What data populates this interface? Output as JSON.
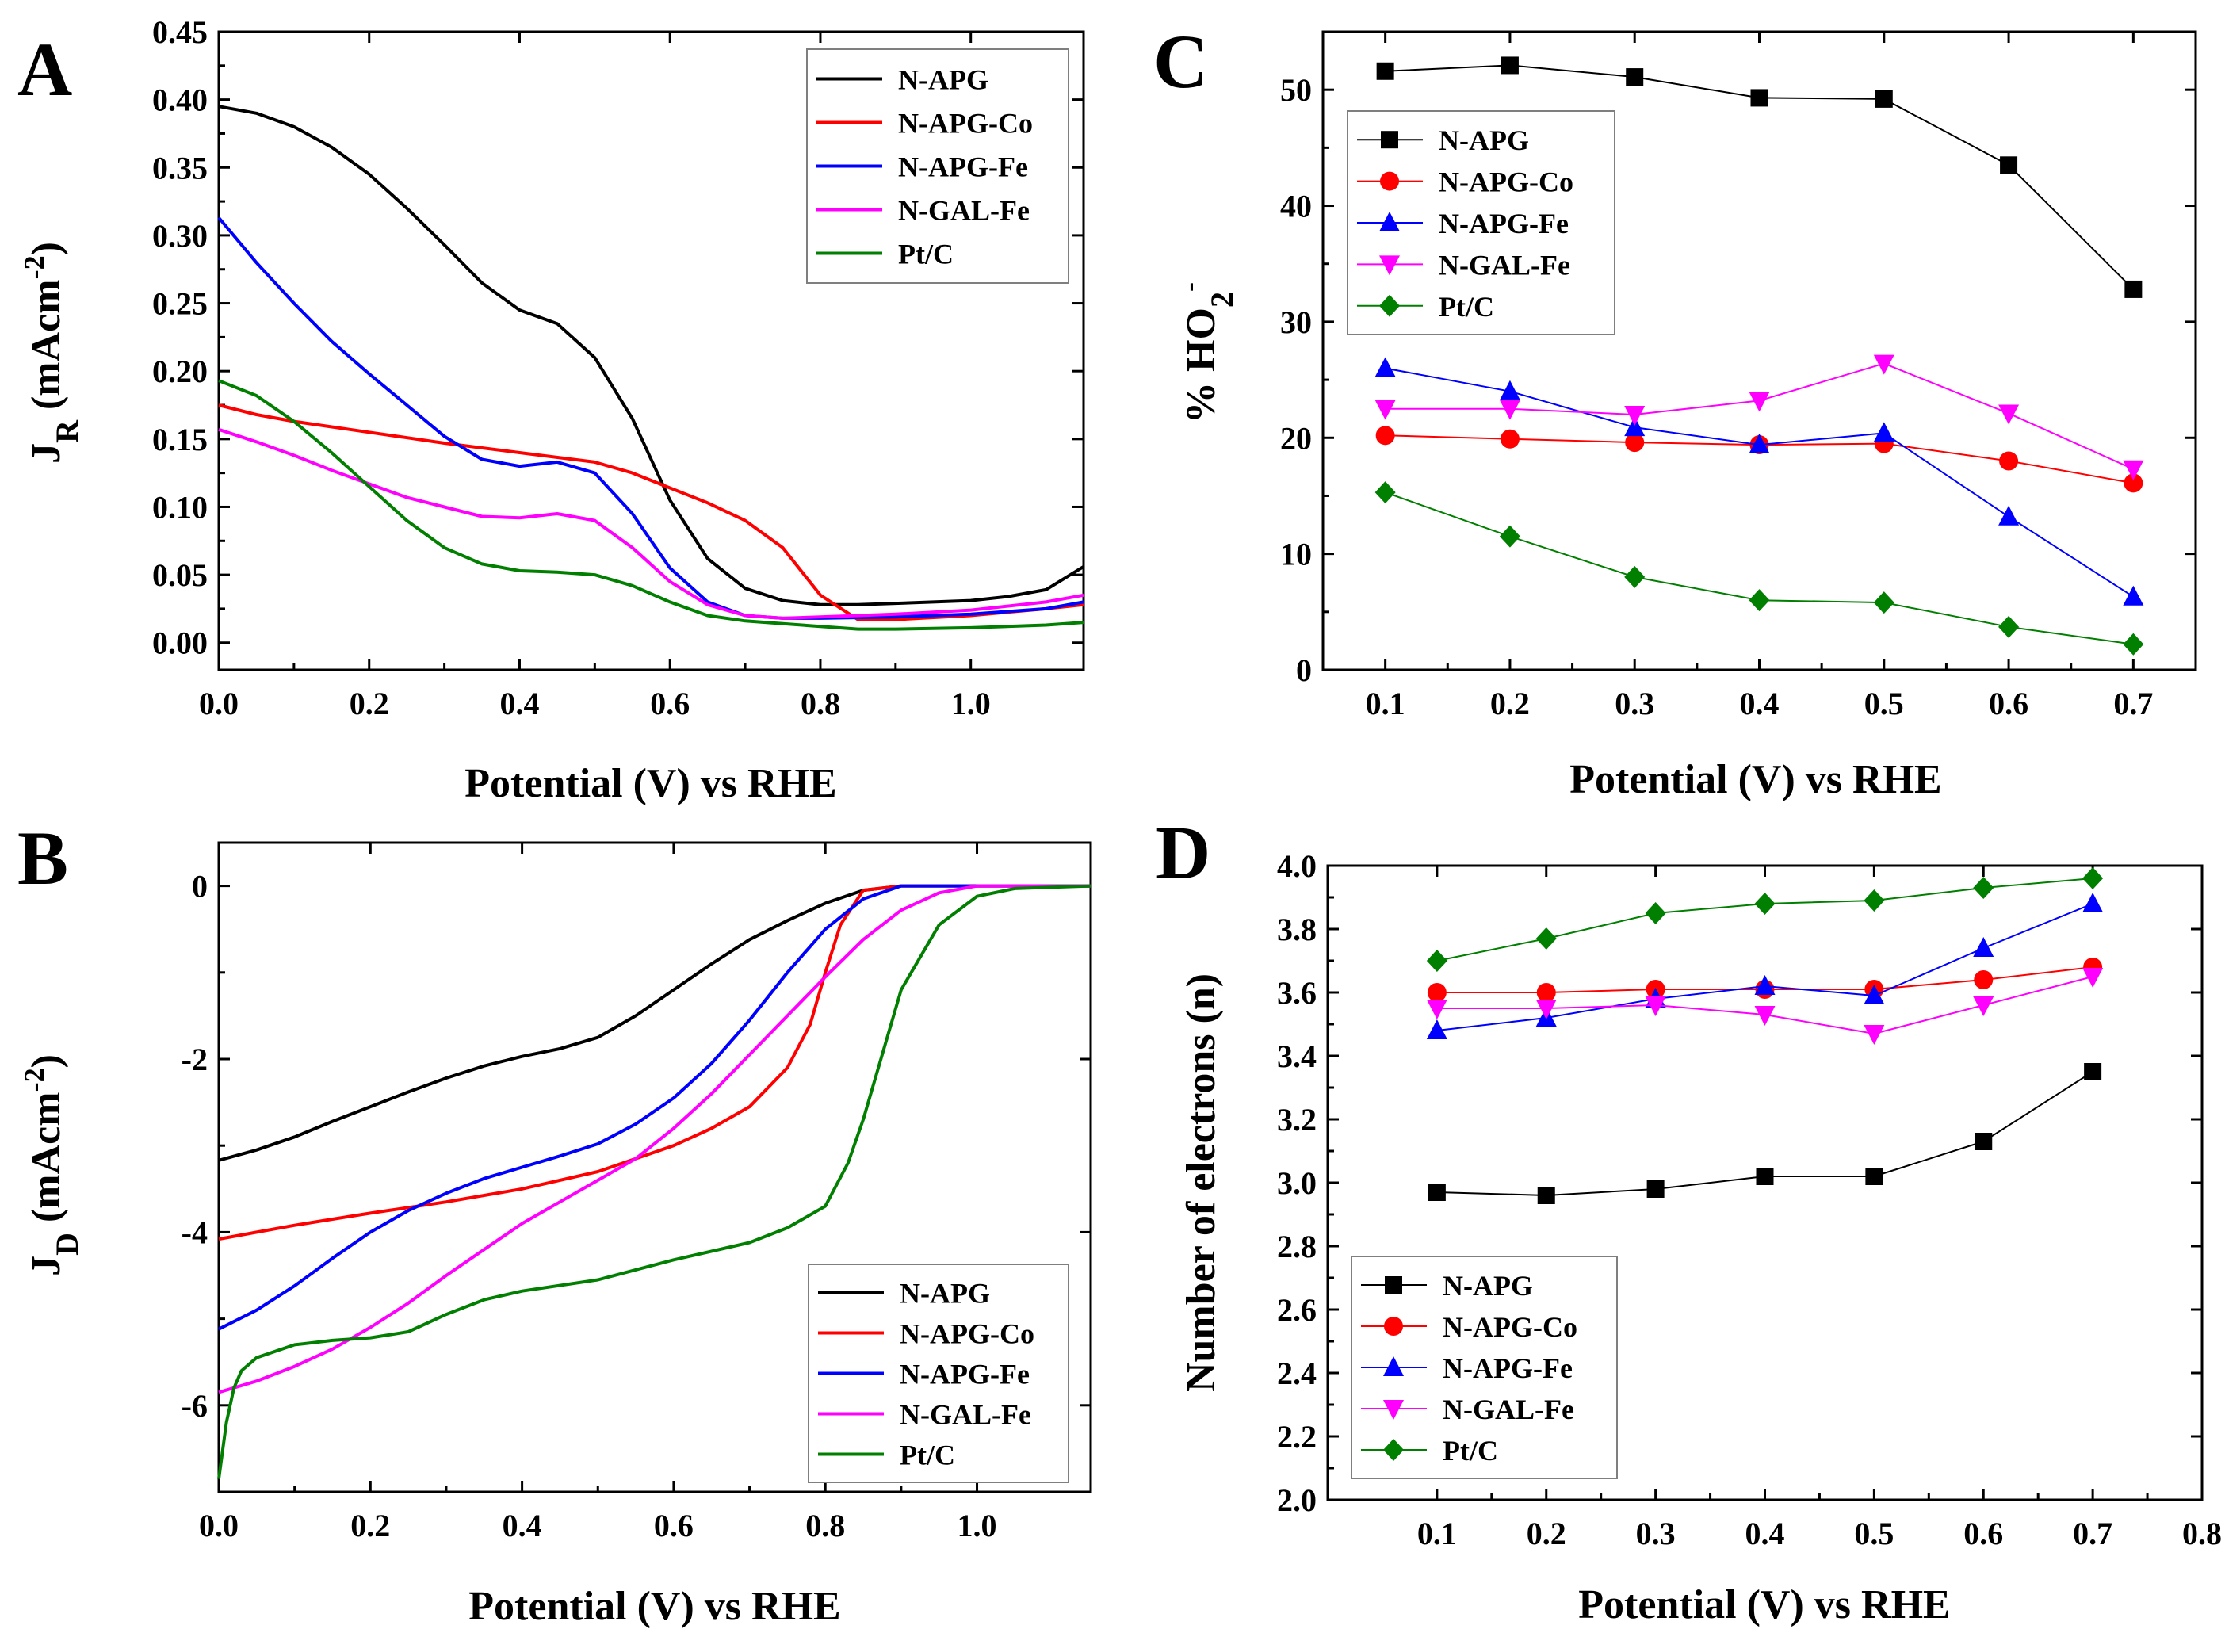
{
  "figure": {
    "panels": [
      "A",
      "B",
      "C",
      "D"
    ]
  },
  "colors": {
    "N-APG": "#000000",
    "N-APG-Co": "#ff0000",
    "N-APG-Fe": "#0000ff",
    "N-GAL-Fe": "#ff00ff",
    "Pt/C": "#007f00"
  },
  "chart_data": [
    {
      "panel": "A",
      "type": "line",
      "xlabel": "Potential (V) vs RHE",
      "ylabel": "J",
      "ylabel_sub": "R",
      "ylabel_unit": " (mAcm",
      "ylabel_sup": "-2",
      "ylabel_close": ")",
      "xlim": [
        0.0,
        1.15
      ],
      "ylim": [
        -0.02,
        0.45
      ],
      "xticks": [
        0.0,
        0.2,
        0.4,
        0.6,
        0.8,
        1.0
      ],
      "xtick_labels": [
        "0.0",
        "0.2",
        "0.4",
        "0.6",
        "0.8",
        "1.0"
      ],
      "yticks": [
        0.0,
        0.05,
        0.1,
        0.15,
        0.2,
        0.25,
        0.3,
        0.35,
        0.4,
        0.45
      ],
      "ytick_labels": [
        "0.00",
        "0.05",
        "0.10",
        "0.15",
        "0.20",
        "0.25",
        "0.30",
        "0.35",
        "0.40",
        "0.45"
      ],
      "legend": "top-right",
      "series": [
        {
          "name": "N-APG",
          "x": [
            0.0,
            0.05,
            0.1,
            0.15,
            0.2,
            0.25,
            0.3,
            0.35,
            0.4,
            0.45,
            0.5,
            0.55,
            0.6,
            0.65,
            0.7,
            0.75,
            0.8,
            0.85,
            0.9,
            0.95,
            1.0,
            1.05,
            1.1,
            1.15
          ],
          "y": [
            0.395,
            0.39,
            0.38,
            0.365,
            0.345,
            0.32,
            0.293,
            0.265,
            0.245,
            0.235,
            0.21,
            0.165,
            0.105,
            0.062,
            0.04,
            0.031,
            0.028,
            0.028,
            0.029,
            0.03,
            0.031,
            0.034,
            0.039,
            0.056
          ]
        },
        {
          "name": "N-APG-Co",
          "x": [
            0.0,
            0.05,
            0.1,
            0.2,
            0.3,
            0.4,
            0.5,
            0.55,
            0.6,
            0.65,
            0.7,
            0.75,
            0.8,
            0.85,
            0.9,
            1.0,
            1.1,
            1.15
          ],
          "y": [
            0.175,
            0.168,
            0.163,
            0.155,
            0.147,
            0.14,
            0.133,
            0.125,
            0.114,
            0.103,
            0.09,
            0.07,
            0.035,
            0.017,
            0.017,
            0.02,
            0.025,
            0.028
          ]
        },
        {
          "name": "N-APG-Fe",
          "x": [
            0.0,
            0.05,
            0.1,
            0.15,
            0.2,
            0.25,
            0.3,
            0.35,
            0.4,
            0.45,
            0.5,
            0.55,
            0.6,
            0.65,
            0.7,
            0.75,
            0.8,
            0.9,
            1.0,
            1.1,
            1.15
          ],
          "y": [
            0.313,
            0.28,
            0.25,
            0.222,
            0.198,
            0.175,
            0.152,
            0.135,
            0.13,
            0.133,
            0.125,
            0.095,
            0.055,
            0.03,
            0.02,
            0.018,
            0.018,
            0.019,
            0.021,
            0.025,
            0.03
          ]
        },
        {
          "name": "N-GAL-Fe",
          "x": [
            0.0,
            0.05,
            0.1,
            0.15,
            0.2,
            0.25,
            0.3,
            0.35,
            0.4,
            0.45,
            0.5,
            0.55,
            0.6,
            0.65,
            0.7,
            0.75,
            0.8,
            0.9,
            1.0,
            1.1,
            1.15
          ],
          "y": [
            0.157,
            0.148,
            0.138,
            0.127,
            0.117,
            0.107,
            0.1,
            0.093,
            0.092,
            0.095,
            0.09,
            0.07,
            0.045,
            0.028,
            0.02,
            0.018,
            0.019,
            0.021,
            0.024,
            0.03,
            0.035
          ]
        },
        {
          "name": "Pt/C",
          "x": [
            0.0,
            0.05,
            0.1,
            0.15,
            0.2,
            0.25,
            0.3,
            0.35,
            0.4,
            0.45,
            0.5,
            0.55,
            0.6,
            0.65,
            0.7,
            0.75,
            0.8,
            0.85,
            0.9,
            1.0,
            1.1,
            1.15
          ],
          "y": [
            0.193,
            0.182,
            0.163,
            0.14,
            0.115,
            0.09,
            0.07,
            0.058,
            0.053,
            0.052,
            0.05,
            0.042,
            0.03,
            0.02,
            0.016,
            0.014,
            0.012,
            0.01,
            0.01,
            0.011,
            0.013,
            0.015
          ]
        }
      ]
    },
    {
      "panel": "B",
      "type": "line",
      "xlabel": "Potential (V) vs RHE",
      "ylabel": "J",
      "ylabel_sub": "D",
      "ylabel_unit": " (mAcm",
      "ylabel_sup": "-2",
      "ylabel_close": ")",
      "xlim": [
        0.0,
        1.15
      ],
      "ylim": [
        -7.0,
        0.5
      ],
      "xticks": [
        0.0,
        0.2,
        0.4,
        0.6,
        0.8,
        1.0
      ],
      "xtick_labels": [
        "0.0",
        "0.2",
        "0.4",
        "0.6",
        "0.8",
        "1.0"
      ],
      "yticks": [
        -6,
        -4,
        -2,
        0
      ],
      "ytick_labels": [
        "-6",
        "-4",
        "-2",
        "0"
      ],
      "legend": "bottom-right",
      "series": [
        {
          "name": "N-APG",
          "x": [
            0.0,
            0.05,
            0.1,
            0.15,
            0.2,
            0.25,
            0.3,
            0.35,
            0.4,
            0.45,
            0.5,
            0.55,
            0.6,
            0.65,
            0.7,
            0.75,
            0.8,
            0.85,
            0.9,
            1.0,
            1.1,
            1.15
          ],
          "y": [
            -3.17,
            -3.05,
            -2.9,
            -2.72,
            -2.55,
            -2.38,
            -2.22,
            -2.08,
            -1.97,
            -1.88,
            -1.75,
            -1.5,
            -1.2,
            -0.9,
            -0.62,
            -0.4,
            -0.2,
            -0.05,
            0.0,
            0.0,
            0.0,
            0.0
          ]
        },
        {
          "name": "N-APG-Co",
          "x": [
            0.0,
            0.05,
            0.1,
            0.15,
            0.2,
            0.3,
            0.4,
            0.5,
            0.55,
            0.6,
            0.65,
            0.7,
            0.75,
            0.78,
            0.8,
            0.82,
            0.85,
            0.9,
            1.0,
            1.15
          ],
          "y": [
            -4.08,
            -4.0,
            -3.92,
            -3.85,
            -3.78,
            -3.65,
            -3.5,
            -3.3,
            -3.15,
            -3.0,
            -2.8,
            -2.55,
            -2.1,
            -1.6,
            -1.0,
            -0.45,
            -0.05,
            0.0,
            0.0,
            0.0
          ]
        },
        {
          "name": "N-APG-Fe",
          "x": [
            0.0,
            0.05,
            0.1,
            0.15,
            0.2,
            0.25,
            0.3,
            0.35,
            0.4,
            0.45,
            0.5,
            0.55,
            0.6,
            0.65,
            0.7,
            0.75,
            0.8,
            0.85,
            0.9,
            1.0,
            1.15
          ],
          "y": [
            -5.12,
            -4.9,
            -4.62,
            -4.3,
            -4.0,
            -3.75,
            -3.55,
            -3.38,
            -3.25,
            -3.12,
            -2.98,
            -2.75,
            -2.45,
            -2.05,
            -1.55,
            -1.0,
            -0.5,
            -0.15,
            0.0,
            0.0,
            0.0
          ]
        },
        {
          "name": "N-GAL-Fe",
          "x": [
            0.0,
            0.05,
            0.1,
            0.15,
            0.2,
            0.25,
            0.3,
            0.35,
            0.4,
            0.45,
            0.5,
            0.55,
            0.6,
            0.65,
            0.7,
            0.75,
            0.8,
            0.85,
            0.9,
            0.95,
            1.0,
            1.15
          ],
          "y": [
            -5.85,
            -5.72,
            -5.55,
            -5.35,
            -5.1,
            -4.82,
            -4.5,
            -4.2,
            -3.9,
            -3.65,
            -3.4,
            -3.15,
            -2.8,
            -2.4,
            -1.95,
            -1.5,
            -1.05,
            -0.62,
            -0.28,
            -0.08,
            0.0,
            0.0
          ]
        },
        {
          "name": "Pt/C",
          "x": [
            0.0,
            0.01,
            0.02,
            0.03,
            0.05,
            0.1,
            0.15,
            0.2,
            0.25,
            0.3,
            0.35,
            0.4,
            0.5,
            0.6,
            0.7,
            0.75,
            0.8,
            0.83,
            0.85,
            0.88,
            0.9,
            0.95,
            1.0,
            1.05,
            1.15
          ],
          "y": [
            -6.85,
            -6.2,
            -5.8,
            -5.6,
            -5.45,
            -5.3,
            -5.25,
            -5.22,
            -5.15,
            -4.95,
            -4.78,
            -4.68,
            -4.55,
            -4.32,
            -4.12,
            -3.95,
            -3.7,
            -3.2,
            -2.7,
            -1.8,
            -1.2,
            -0.45,
            -0.12,
            -0.03,
            0.0
          ]
        }
      ]
    },
    {
      "panel": "C",
      "type": "line",
      "markers": true,
      "xlabel": "Potential (V) vs RHE",
      "ylabel": "% HO",
      "ylabel_sub": "2",
      "ylabel_sup": "-",
      "xlim": [
        0.05,
        0.75
      ],
      "ylim": [
        0,
        55
      ],
      "xticks": [
        0.1,
        0.2,
        0.3,
        0.4,
        0.5,
        0.6,
        0.7
      ],
      "xtick_labels": [
        "0.1",
        "0.2",
        "0.3",
        "0.4",
        "0.5",
        "0.6",
        "0.7"
      ],
      "yticks": [
        0,
        10,
        20,
        30,
        40,
        50
      ],
      "ytick_labels": [
        "0",
        "10",
        "20",
        "30",
        "40",
        "50"
      ],
      "legend": "middle-left",
      "x": [
        0.1,
        0.2,
        0.3,
        0.4,
        0.5,
        0.6,
        0.7
      ],
      "series": [
        {
          "name": "N-APG",
          "marker": "square",
          "values": [
            51.6,
            52.1,
            51.1,
            49.3,
            49.2,
            43.5,
            32.8
          ]
        },
        {
          "name": "N-APG-Co",
          "marker": "circle",
          "values": [
            20.2,
            19.9,
            19.6,
            19.4,
            19.5,
            18.0,
            16.1
          ]
        },
        {
          "name": "N-APG-Fe",
          "marker": "triangle-up",
          "values": [
            26.0,
            24.0,
            20.9,
            19.4,
            20.4,
            13.2,
            6.3
          ]
        },
        {
          "name": "N-GAL-Fe",
          "marker": "triangle-down",
          "values": [
            22.5,
            22.5,
            22.0,
            23.2,
            26.4,
            22.1,
            17.3
          ]
        },
        {
          "name": "Pt/C",
          "marker": "diamond",
          "values": [
            15.3,
            11.5,
            8.0,
            6.0,
            5.8,
            3.7,
            2.2
          ]
        }
      ]
    },
    {
      "panel": "D",
      "type": "line",
      "markers": true,
      "xlabel": "Potential (V) vs RHE",
      "ylabel": "Number of electrons (n)",
      "xlim": [
        0.0,
        0.8
      ],
      "ylim": [
        2.0,
        4.0
      ],
      "xticks": [
        0.1,
        0.2,
        0.3,
        0.4,
        0.5,
        0.6,
        0.7,
        0.8
      ],
      "xtick_labels": [
        "0.1",
        "0.2",
        "0.3",
        "0.4",
        "0.5",
        "0.6",
        "0.7",
        "0.8"
      ],
      "yticks": [
        2.0,
        2.2,
        2.4,
        2.6,
        2.8,
        3.0,
        3.2,
        3.4,
        3.6,
        3.8,
        4.0
      ],
      "ytick_labels": [
        "2.0",
        "2.2",
        "2.4",
        "2.6",
        "2.8",
        "3.0",
        "3.2",
        "3.4",
        "3.6",
        "3.8",
        "4.0"
      ],
      "legend": "bottom-left",
      "x": [
        0.1,
        0.2,
        0.3,
        0.4,
        0.5,
        0.6,
        0.7
      ],
      "series": [
        {
          "name": "N-APG",
          "marker": "square",
          "values": [
            2.97,
            2.96,
            2.98,
            3.02,
            3.02,
            3.13,
            3.35
          ]
        },
        {
          "name": "N-APG-Co",
          "marker": "circle",
          "values": [
            3.6,
            3.6,
            3.61,
            3.61,
            3.61,
            3.64,
            3.68
          ]
        },
        {
          "name": "N-APG-Fe",
          "marker": "triangle-up",
          "values": [
            3.48,
            3.52,
            3.58,
            3.62,
            3.59,
            3.74,
            3.88
          ]
        },
        {
          "name": "N-GAL-Fe",
          "marker": "triangle-down",
          "values": [
            3.55,
            3.55,
            3.56,
            3.53,
            3.47,
            3.56,
            3.65
          ]
        },
        {
          "name": "Pt/C",
          "marker": "diamond",
          "values": [
            3.7,
            3.77,
            3.85,
            3.88,
            3.89,
            3.93,
            3.96
          ]
        }
      ]
    }
  ]
}
